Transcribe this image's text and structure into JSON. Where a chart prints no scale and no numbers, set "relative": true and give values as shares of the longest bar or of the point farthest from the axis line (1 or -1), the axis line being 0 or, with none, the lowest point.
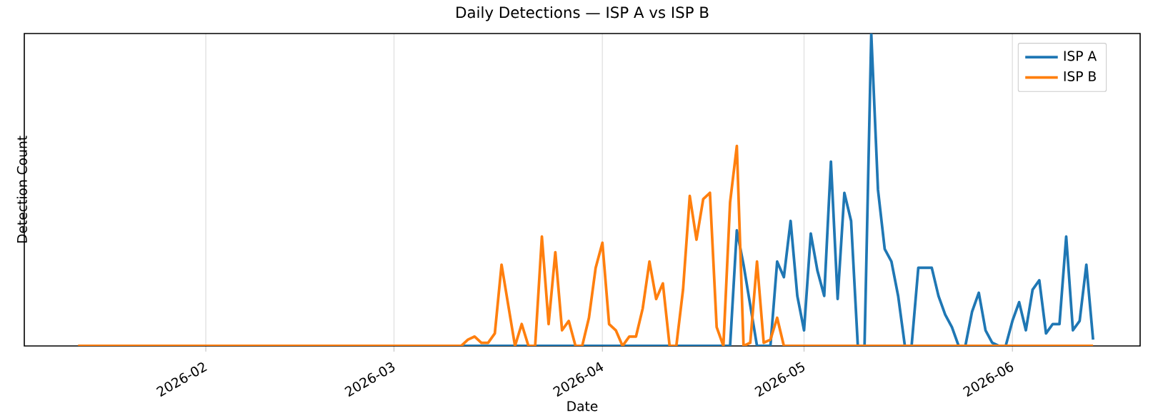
{
  "chart_data": {
    "type": "line",
    "title": "Daily Detections — ISP A vs ISP B",
    "xlabel": "Date",
    "ylabel": "Detection Count",
    "relative": true,
    "grid": "x",
    "legend": "top right",
    "xlim": [
      "2026-01-05",
      "2026-06-20"
    ],
    "xticks": [
      {
        "value": "2026-02-01",
        "label": "2026-02"
      },
      {
        "value": "2026-03-01",
        "label": "2026-03"
      },
      {
        "value": "2026-04-01",
        "label": "2026-04"
      },
      {
        "value": "2026-05-01",
        "label": "2026-05"
      },
      {
        "value": "2026-06-01",
        "label": "2026-06"
      }
    ],
    "series": [
      {
        "name": "ISP A",
        "color": "#1f77b4",
        "x": [
          "2026-03-11",
          "2026-04-20",
          "2026-04-21",
          "2026-04-22",
          "2026-04-23",
          "2026-04-24",
          "2026-04-25",
          "2026-04-26",
          "2026-04-27",
          "2026-04-28",
          "2026-04-29",
          "2026-04-30",
          "2026-05-01",
          "2026-05-02",
          "2026-05-03",
          "2026-05-04",
          "2026-05-05",
          "2026-05-06",
          "2026-05-07",
          "2026-05-08",
          "2026-05-09",
          "2026-05-10",
          "2026-05-11",
          "2026-05-12",
          "2026-05-13",
          "2026-05-14",
          "2026-05-15",
          "2026-05-16",
          "2026-05-17",
          "2026-05-18",
          "2026-05-19",
          "2026-05-20",
          "2026-05-21",
          "2026-05-22",
          "2026-05-23",
          "2026-05-24",
          "2026-05-25",
          "2026-05-26",
          "2026-05-27",
          "2026-05-28",
          "2026-05-29",
          "2026-05-30",
          "2026-05-31",
          "2026-06-01",
          "2026-06-02",
          "2026-06-03",
          "2026-06-04",
          "2026-06-05",
          "2026-06-06",
          "2026-06-07",
          "2026-06-08",
          "2026-06-09",
          "2026-06-10",
          "2026-06-11",
          "2026-06-12",
          "2026-06-13"
        ],
        "values": [
          0,
          0,
          0.37,
          0.26,
          0.13,
          0,
          0,
          0,
          0.27,
          0.22,
          0.4,
          0.16,
          0.05,
          0.36,
          0.24,
          0.16,
          0.59,
          0.15,
          0.49,
          0.4,
          0,
          0,
          1,
          0.5,
          0.31,
          0.27,
          0.16,
          0,
          0,
          0.25,
          0.25,
          0.25,
          0.16,
          0.1,
          0.06,
          0,
          0,
          0.11,
          0.17,
          0.05,
          0.01,
          0,
          0,
          0.08,
          0.14,
          0.05,
          0.18,
          0.21,
          0.04,
          0.07,
          0.07,
          0.35,
          0.05,
          0.08,
          0.26,
          0.02
        ]
      },
      {
        "name": "ISP B",
        "color": "#ff7f0e",
        "x": [
          "2026-01-13",
          "2026-03-11",
          "2026-03-12",
          "2026-03-13",
          "2026-03-14",
          "2026-03-15",
          "2026-03-16",
          "2026-03-17",
          "2026-03-18",
          "2026-03-19",
          "2026-03-20",
          "2026-03-21",
          "2026-03-22",
          "2026-03-23",
          "2026-03-24",
          "2026-03-25",
          "2026-03-26",
          "2026-03-27",
          "2026-03-28",
          "2026-03-29",
          "2026-03-30",
          "2026-03-31",
          "2026-04-01",
          "2026-04-02",
          "2026-04-03",
          "2026-04-04",
          "2026-04-05",
          "2026-04-06",
          "2026-04-07",
          "2026-04-08",
          "2026-04-09",
          "2026-04-10",
          "2026-04-11",
          "2026-04-12",
          "2026-04-13",
          "2026-04-14",
          "2026-04-15",
          "2026-04-16",
          "2026-04-17",
          "2026-04-18",
          "2026-04-19",
          "2026-04-20",
          "2026-04-21",
          "2026-04-22",
          "2026-04-23",
          "2026-04-24",
          "2026-04-25",
          "2026-04-26",
          "2026-04-27",
          "2026-04-28",
          "2026-06-13"
        ],
        "values": [
          0,
          0,
          0.02,
          0.03,
          0.01,
          0.01,
          0.04,
          0.26,
          0.13,
          0,
          0.07,
          0,
          0,
          0.35,
          0.07,
          0.3,
          0.05,
          0.08,
          0,
          0,
          0.09,
          0.25,
          0.33,
          0.07,
          0.05,
          0,
          0.03,
          0.03,
          0.12,
          0.27,
          0.15,
          0.2,
          0,
          0,
          0.18,
          0.48,
          0.34,
          0.47,
          0.49,
          0.06,
          0,
          0.46,
          0.64,
          0,
          0.01,
          0.27,
          0.01,
          0.02,
          0.09,
          0,
          0
        ]
      }
    ]
  }
}
